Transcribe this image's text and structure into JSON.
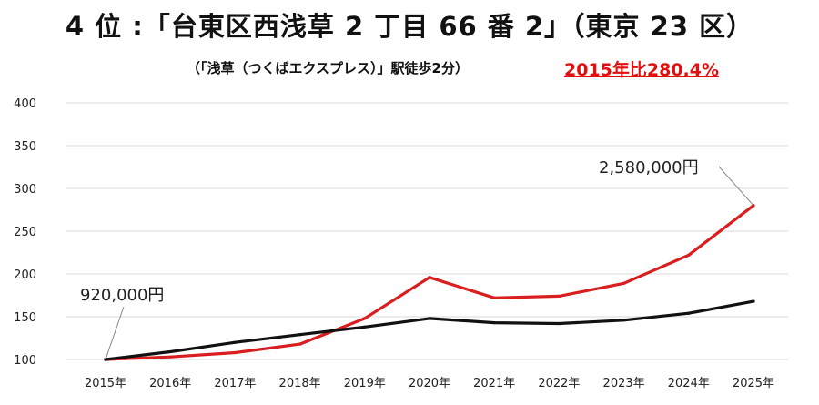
{
  "header": {
    "title": "4 位 :「台東区西浅草 2 丁目 66 番 2」（東京 23 区）",
    "subtitle": "（「浅草（つくばエクスプレス）」駅徒歩2分）",
    "ratio": "2015年比280.4%"
  },
  "colors": {
    "series_red": "#d81e1e",
    "series_black": "#111111",
    "grid": "#d9d9d9",
    "ratio_text": "#e01010"
  },
  "chart_data": {
    "type": "line",
    "x": [
      "2015年",
      "2016年",
      "2017年",
      "2018年",
      "2019年",
      "2020年",
      "2021年",
      "2022年",
      "2023年",
      "2024年",
      "2025年"
    ],
    "series": [
      {
        "color": "#d81e1e",
        "values": [
          100,
          103,
          108,
          118,
          148,
          196,
          172,
          174,
          189,
          222,
          280
        ]
      },
      {
        "color": "#111111",
        "values": [
          100,
          109,
          120,
          129,
          138,
          148,
          143,
          142,
          146,
          154,
          168
        ]
      }
    ],
    "yticks": [
      "100",
      "150",
      "200",
      "250",
      "300",
      "350",
      "400"
    ],
    "ylim": [
      100,
      400
    ],
    "grid": true,
    "annotations": [
      {
        "text": "920,000円",
        "x": "2015年",
        "y": 100
      },
      {
        "text": "2,580,000円",
        "x": "2025年",
        "y": 280
      }
    ]
  }
}
